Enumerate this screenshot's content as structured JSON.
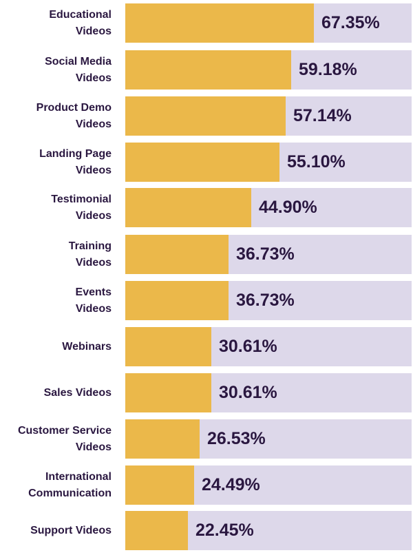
{
  "chart_data": {
    "type": "bar",
    "orientation": "horizontal",
    "categories": [
      [
        "Educational",
        "Videos"
      ],
      [
        "Social Media",
        "Videos"
      ],
      [
        "Product Demo",
        "Videos"
      ],
      [
        "Landing Page",
        "Videos"
      ],
      [
        "Testimonial",
        "Videos"
      ],
      [
        "Training",
        "Videos"
      ],
      [
        "Events",
        "Videos"
      ],
      [
        "Webinars"
      ],
      [
        "Sales Videos"
      ],
      [
        "Customer Service",
        "Videos"
      ],
      [
        "International",
        "Communication"
      ],
      [
        "Support Videos"
      ]
    ],
    "values": [
      67.35,
      59.18,
      57.14,
      55.1,
      44.9,
      36.73,
      36.73,
      30.61,
      30.61,
      26.53,
      24.49,
      22.45
    ],
    "value_labels": [
      "67.35%",
      "59.18%",
      "57.14%",
      "55.10%",
      "44.90%",
      "36.73%",
      "36.73%",
      "30.61%",
      "30.61%",
      "26.53%",
      "24.49%",
      "22.45%"
    ],
    "colors": {
      "bar": "#ebb84a",
      "track": "#ddd8ea",
      "text": "#2a1740"
    },
    "grid": false,
    "legend": "none"
  }
}
